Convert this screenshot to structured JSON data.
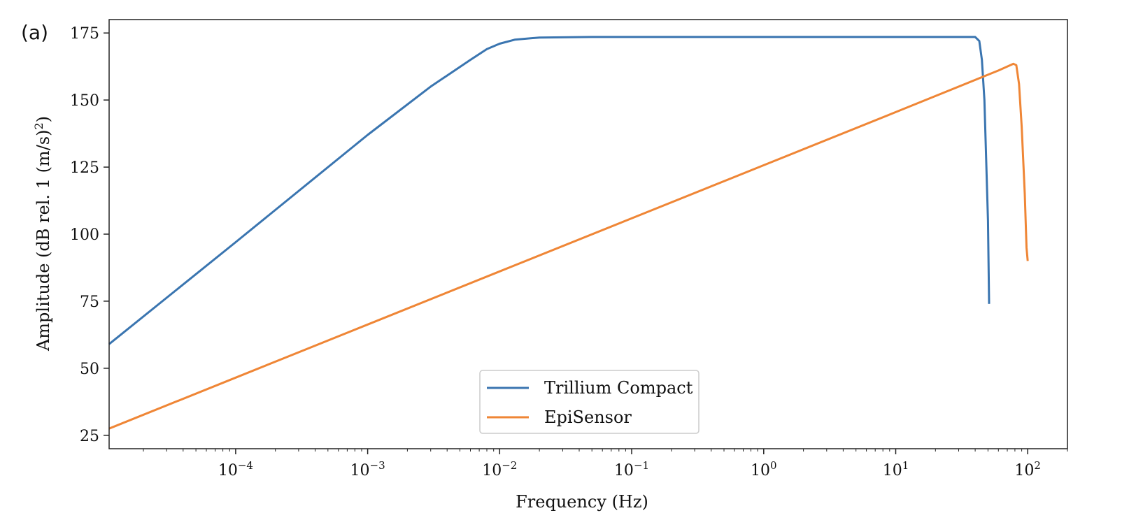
{
  "chart_data": {
    "type": "line",
    "panel_label": "(a)",
    "title": "",
    "xlabel": "Frequency (Hz)",
    "ylabel": "Amplitude (dB rel. 1 (m/s)",
    "ylabel_exponent": "2",
    "ylabel_close": ")",
    "xscale": "log",
    "xlim": [
      1.1e-05,
      200
    ],
    "ylim": [
      20,
      180
    ],
    "grid": false,
    "legend_placement": "lower-center",
    "x_ticks": [
      {
        "value": 0.0001,
        "base": "10",
        "exp": "−4"
      },
      {
        "value": 0.001,
        "base": "10",
        "exp": "−3"
      },
      {
        "value": 0.01,
        "base": "10",
        "exp": "−2"
      },
      {
        "value": 0.1,
        "base": "10",
        "exp": "−1"
      },
      {
        "value": 1,
        "base": "10",
        "exp": "0"
      },
      {
        "value": 10,
        "base": "10",
        "exp": "1"
      },
      {
        "value": 100,
        "base": "10",
        "exp": "2"
      }
    ],
    "y_ticks": [
      {
        "value": 25,
        "label": "25"
      },
      {
        "value": 50,
        "label": "50"
      },
      {
        "value": 75,
        "label": "75"
      },
      {
        "value": 100,
        "label": "100"
      },
      {
        "value": 125,
        "label": "125"
      },
      {
        "value": 150,
        "label": "150"
      },
      {
        "value": 175,
        "label": "175"
      }
    ],
    "series": [
      {
        "name": "Trillium Compact",
        "color": "#3a75b0",
        "x": [
          1.1e-05,
          0.0001,
          0.001,
          0.003,
          0.006,
          0.008,
          0.01,
          0.013,
          0.02,
          0.05,
          1,
          10,
          40,
          43,
          45,
          47,
          48,
          50,
          51
        ],
        "y": [
          59,
          97,
          137,
          155,
          165,
          169,
          171,
          172.5,
          173.3,
          173.5,
          173.5,
          173.5,
          173.5,
          172,
          165,
          150,
          135,
          105,
          74
        ]
      },
      {
        "name": "EpiSensor",
        "color": "#ef8636",
        "x": [
          1.1e-05,
          0.0001,
          0.001,
          0.01,
          0.1,
          1,
          10,
          60,
          78,
          82,
          86,
          90,
          95,
          98,
          100
        ],
        "y": [
          27.5,
          46.5,
          66.3,
          86.1,
          105.9,
          125.7,
          145.5,
          161,
          163.5,
          163,
          156,
          140,
          115,
          95,
          90
        ]
      }
    ]
  }
}
